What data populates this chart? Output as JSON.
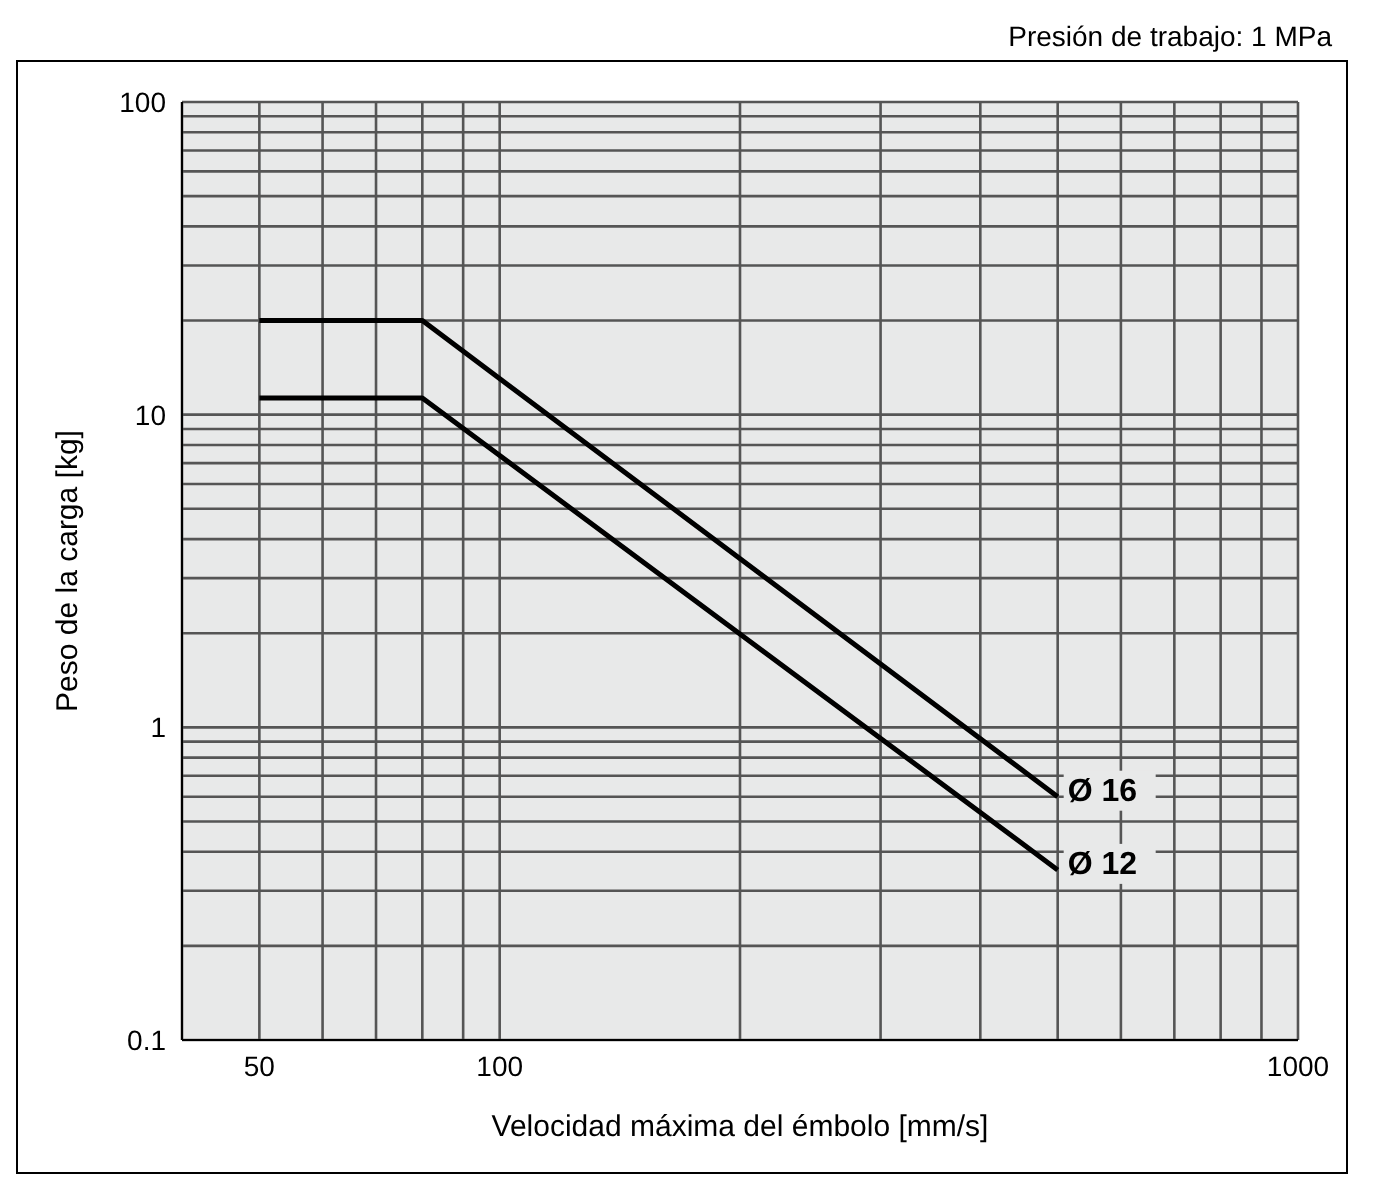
{
  "chart_data": {
    "type": "line",
    "title": "Presión de trabajo: 1 MPa",
    "xlabel": "Velocidad máxima del émbolo [mm/s]",
    "ylabel": "Peso de la carga [kg]",
    "x": [
      50,
      80,
      500
    ],
    "series": [
      {
        "name": "Ø 16",
        "color": "#000000",
        "values": [
          20,
          20,
          0.6
        ]
      },
      {
        "name": "Ø 12",
        "color": "#000000",
        "values": [
          11.3,
          11.3,
          0.35
        ]
      }
    ],
    "log": "xy",
    "xlim": [
      40,
      1000
    ],
    "ylim": [
      0.1,
      100
    ],
    "xticks": [
      {
        "value": 40,
        "label": null
      },
      50,
      {
        "value": 60,
        "label": null
      },
      {
        "value": 70,
        "label": null
      },
      {
        "value": 80,
        "label": null
      },
      {
        "value": 90,
        "label": null
      },
      100,
      {
        "value": 200,
        "label": null
      },
      {
        "value": 300,
        "label": null
      },
      {
        "value": 400,
        "label": null
      },
      {
        "value": 500,
        "label": null
      },
      {
        "value": 600,
        "label": null
      },
      {
        "value": 700,
        "label": null
      },
      {
        "value": 800,
        "label": null
      },
      {
        "value": 900,
        "label": null
      },
      1000
    ],
    "yticks": [
      0.1,
      {
        "value": 0.2,
        "label": null
      },
      {
        "value": 0.3,
        "label": null
      },
      {
        "value": 0.4,
        "label": null
      },
      {
        "value": 0.5,
        "label": null
      },
      {
        "value": 0.6,
        "label": null
      },
      {
        "value": 0.7,
        "label": null
      },
      {
        "value": 0.8,
        "label": null
      },
      {
        "value": 0.9,
        "label": null
      },
      1,
      {
        "value": 2,
        "label": null
      },
      {
        "value": 3,
        "label": null
      },
      {
        "value": 4,
        "label": null
      },
      {
        "value": 5,
        "label": null
      },
      {
        "value": 6,
        "label": null
      },
      {
        "value": 7,
        "label": null
      },
      {
        "value": 8,
        "label": null
      },
      {
        "value": 9,
        "label": null
      },
      10,
      {
        "value": 20,
        "label": null
      },
      {
        "value": 30,
        "label": null
      },
      {
        "value": 40,
        "label": null
      },
      {
        "value": 50,
        "label": null
      },
      {
        "value": 60,
        "label": null
      },
      {
        "value": 70,
        "label": null
      },
      {
        "value": 80,
        "label": null
      },
      {
        "value": 90,
        "label": null
      },
      100
    ],
    "grid": true,
    "marker": "none",
    "line_style": "solid"
  }
}
